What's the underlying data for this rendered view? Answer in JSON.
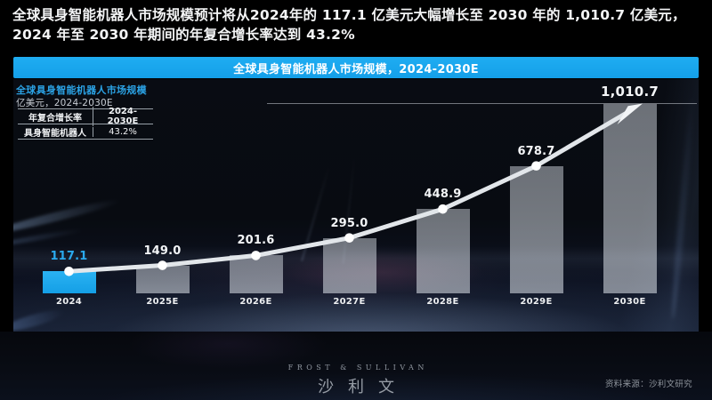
{
  "headline": {
    "line1": "全球具身智能机器人市场规模预计将从2024年的 117.1 亿美元大幅增长至 2030 年的 1,010.7 亿美元，",
    "line2": "2024 年至 2030 年期间的年复合增长率达到 43.2%"
  },
  "banner": {
    "title": "全球具身智能机器人市场规模，2024-2030E"
  },
  "chart_header": {
    "title": "全球具身智能机器人市场规模",
    "subtitle": "亿美元，2024-2030E"
  },
  "cagr_table": {
    "header": [
      "年复合增长率",
      "2024-2030E"
    ],
    "rows": [
      [
        "具身智能机器人",
        "43.2%"
      ]
    ]
  },
  "chart_data": {
    "type": "bar",
    "title": "全球具身智能机器人市场规模，2024-2030E",
    "unit": "亿美元",
    "categories": [
      "2024",
      "2025E",
      "2026E",
      "2027E",
      "2028E",
      "2029E",
      "2030E"
    ],
    "values": [
      117.1,
      149.0,
      201.6,
      295.0,
      448.9,
      678.7,
      1010.7
    ],
    "value_labels": [
      "117.1",
      "149.0",
      "201.6",
      "295.0",
      "448.9",
      "678.7",
      "1,010.7"
    ],
    "highlight_index": 0,
    "ylim": [
      0,
      1010.7
    ],
    "grid": "single top reference line at max value",
    "trendline": "white line through bar tops with dots, ending in arrow at 2030E",
    "cagr_2024_2030E": "43.2%",
    "xlabel": "",
    "ylabel": "亿美元"
  },
  "colors": {
    "banner_blue": "#18a9ef",
    "bar_highlight": "#1ca9ee",
    "bar_default": "rgba(210,216,224,0.55)",
    "value_highlight_text": "#2aaaee",
    "trend_line": "#e2e6ea",
    "panel_background": "#0a0d16"
  },
  "footer": {
    "logo_en": "FROST & SULLIVAN",
    "logo_cn": "沙利文",
    "source": "资料来源：沙利文研究"
  }
}
